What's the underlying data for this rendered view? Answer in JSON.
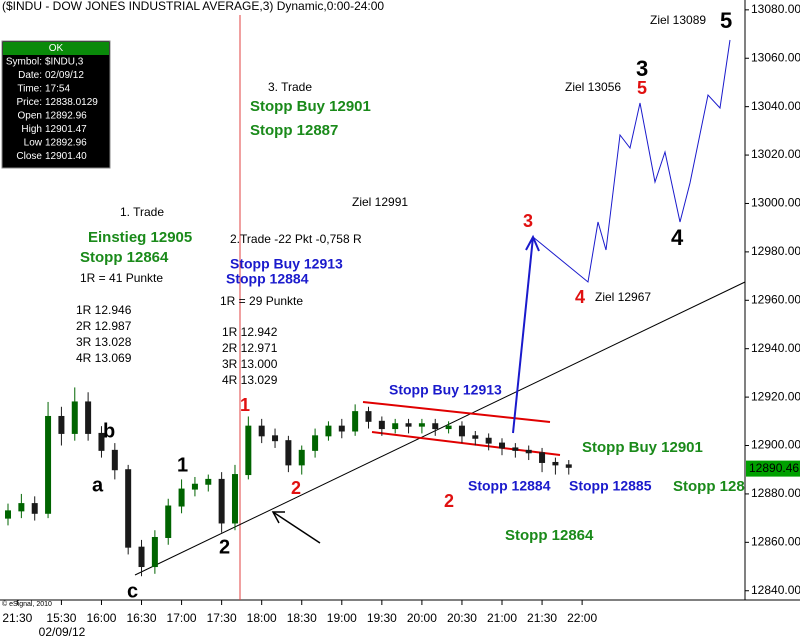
{
  "chart_data": {
    "type": "candlestick",
    "title": "($INDU - DOW JONES INDUSTRIAL AVERAGE,3) Dynamic,0:00-24:00",
    "x": [
      890,
      900,
      910,
      920,
      930,
      940,
      950,
      960,
      970,
      980,
      990,
      1000,
      1010,
      1020,
      1030,
      1040,
      1050,
      1060,
      1070,
      1080,
      1090,
      1100,
      1110,
      1120,
      1130,
      1140,
      1150,
      1160,
      1170,
      1180,
      1190,
      1200,
      1210,
      1220,
      1230,
      1240,
      1250,
      1260,
      1270,
      1280,
      1290,
      1300,
      1310
    ],
    "open": [
      12870,
      12873,
      12876,
      12872,
      12912,
      12905,
      12918,
      12905,
      12898,
      12890,
      12858,
      12850,
      12862,
      12875,
      12882,
      12884,
      12886,
      12868,
      12888,
      12908,
      12904,
      12902,
      12892,
      12898,
      12904,
      12908,
      12906,
      12914,
      12910,
      12907,
      12909,
      12908,
      12909,
      12907,
      12908,
      12904,
      12903,
      12901,
      12899,
      12898,
      12897,
      12893,
      12892
    ],
    "high": [
      12876,
      12880,
      12879,
      12918,
      12916,
      12924,
      12922,
      12908,
      12901,
      12892,
      12861,
      12865,
      12878,
      12886,
      12887,
      12888,
      12889,
      12892,
      12912,
      12911,
      12907,
      12904,
      12900,
      12907,
      12910,
      12911,
      12917,
      12916,
      12912,
      12911,
      12911,
      12911,
      12911,
      12910,
      12910,
      12906,
      12905,
      12903,
      12901,
      12900,
      12899,
      12895,
      12894
    ],
    "low": [
      12867,
      12870,
      12869,
      12870,
      12900,
      12902,
      12902,
      12895,
      12886,
      12855,
      12846,
      12847,
      12859,
      12872,
      12879,
      12881,
      12864,
      12865,
      12886,
      12901,
      12899,
      12889,
      12888,
      12895,
      12902,
      12903,
      12904,
      12907,
      12904,
      12905,
      12905,
      12905,
      12904,
      12905,
      12901,
      12900,
      12898,
      12896,
      12895,
      12894,
      12889,
      12888,
      12888
    ],
    "close": [
      12873,
      12876,
      12872,
      12912,
      12905,
      12918,
      12905,
      12898,
      12890,
      12858,
      12850,
      12862,
      12875,
      12882,
      12884,
      12886,
      12868,
      12888,
      12908,
      12904,
      12902,
      12892,
      12898,
      12904,
      12908,
      12906,
      12914,
      12910,
      12907,
      12909,
      12908,
      12909,
      12907,
      12908,
      12904,
      12903,
      12901,
      12899,
      12898,
      12897,
      12893,
      12892,
      12891
    ],
    "up_color": "#006400",
    "down_color": "#1a1a1a",
    "xlim": [
      884,
      1442
    ],
    "xticks": [
      {
        "value": 897,
        "label": "21:30"
      },
      {
        "value": 930,
        "label": "15:30"
      },
      {
        "value": 960,
        "label": "16:00"
      },
      {
        "value": 990,
        "label": "16:30"
      },
      {
        "value": 1020,
        "label": "17:00"
      },
      {
        "value": 1050,
        "label": "17:30"
      },
      {
        "value": 1080,
        "label": "18:00"
      },
      {
        "value": 1110,
        "label": "18:30"
      },
      {
        "value": 1140,
        "label": "19:00"
      },
      {
        "value": 1170,
        "label": "19:30"
      },
      {
        "value": 1200,
        "label": "20:00"
      },
      {
        "value": 1230,
        "label": "20:30"
      },
      {
        "value": 1260,
        "label": "21:00"
      },
      {
        "value": 1290,
        "label": "21:30"
      },
      {
        "value": 1320,
        "label": "22:00"
      }
    ],
    "date_label": "02/09/12",
    "ylim": [
      12837,
      13082
    ],
    "yticks": [
      {
        "value": 12840,
        "label": "12840.00"
      },
      {
        "value": 12860,
        "label": "12860.00"
      },
      {
        "value": 12880,
        "label": "12880.00"
      },
      {
        "value": 12900,
        "label": "12900.00"
      },
      {
        "value": 12920,
        "label": "12920.00"
      },
      {
        "value": 12940,
        "label": "12940.00"
      },
      {
        "value": 12960,
        "label": "12960.00"
      },
      {
        "value": 12980,
        "label": "12980.00"
      },
      {
        "value": 13000,
        "label": "13000.00"
      },
      {
        "value": 13020,
        "label": "13020.00"
      },
      {
        "value": 13040,
        "label": "13040.00"
      },
      {
        "value": 13060,
        "label": "13060.00"
      },
      {
        "value": 13080,
        "label": "13080.00"
      }
    ],
    "last_price": {
      "value": 12890.46,
      "label": "12890.46",
      "color": "#00a000"
    },
    "info_panel": {
      "status": "OK",
      "rows": [
        [
          "Symbol:",
          "$INDU,3"
        ],
        [
          "Date:",
          "02/09/12"
        ],
        [
          "Time:",
          "17:54"
        ],
        [
          "Price:",
          "12838.0129"
        ],
        [
          "Open",
          "12892.96"
        ],
        [
          "High",
          "12901.47"
        ],
        [
          "Low",
          "12892.96"
        ],
        [
          "Close",
          "12901.40"
        ]
      ]
    },
    "credit": "© eSignal, 2010",
    "annotations": [
      {
        "text": "3. Trade",
        "color": "#000000"
      },
      {
        "text": "Stopp Buy 12901",
        "color": "#1a8a1a"
      },
      {
        "text": "Stopp 12887",
        "color": "#1a8a1a"
      },
      {
        "text": "Ziel 12991",
        "color": "#000000"
      },
      {
        "text": "1. Trade",
        "color": "#000000"
      },
      {
        "text": "Einstieg 12905",
        "color": "#1a8a1a"
      },
      {
        "text": "Stopp 12864",
        "color": "#1a8a1a"
      },
      {
        "text": "1R =    41 Punkte",
        "color": "#000000"
      },
      {
        "text": "1R     12.946",
        "color": "#000000"
      },
      {
        "text": "2R     12.987",
        "color": "#000000"
      },
      {
        "text": "3R     13.028",
        "color": "#000000"
      },
      {
        "text": "4R     13.069",
        "color": "#000000"
      },
      {
        "text": "2.Trade -22 Pkt -0,758 R",
        "color": "#000000"
      },
      {
        "text": "Stopp Buy 12913",
        "color": "#1a1acc"
      },
      {
        "text": "Stopp 12884",
        "color": "#1a1acc"
      },
      {
        "text": "1R =    29 Punkte",
        "color": "#000000"
      },
      {
        "text": "1R     12.942",
        "color": "#000000"
      },
      {
        "text": "2R     12.971",
        "color": "#000000"
      },
      {
        "text": "3R     13.000",
        "color": "#000000"
      },
      {
        "text": "4R     13.029",
        "color": "#000000"
      },
      {
        "text": "Ziel 13089",
        "color": "#000000"
      },
      {
        "text": "5",
        "color": "#000000"
      },
      {
        "text": "3",
        "color": "#000000"
      },
      {
        "text": "5",
        "color": "#e01010"
      },
      {
        "text": "Ziel 13056",
        "color": "#000000"
      },
      {
        "text": "3",
        "color": "#e01010"
      },
      {
        "text": "4",
        "color": "#000000"
      },
      {
        "text": "4",
        "color": "#e01010"
      },
      {
        "text": "Ziel 12967",
        "color": "#000000"
      },
      {
        "text": "Stopp Buy 12913",
        "color": "#1a1acc"
      },
      {
        "text": "Stopp Buy 12901",
        "color": "#1a8a1a"
      },
      {
        "text": "Stopp 12884",
        "color": "#1a1acc"
      },
      {
        "text": "Stopp 12885",
        "color": "#1a1acc"
      },
      {
        "text": "Stopp 128",
        "color": "#1a8a1a"
      },
      {
        "text": "2",
        "color": "#e01010"
      },
      {
        "text": "Stopp 12864",
        "color": "#1a8a1a"
      },
      {
        "text": "b",
        "color": "#000000"
      },
      {
        "text": "a",
        "color": "#000000"
      },
      {
        "text": "1",
        "color": "#000000"
      },
      {
        "text": "2",
        "color": "#e01010"
      },
      {
        "text": "2",
        "color": "#000000"
      },
      {
        "text": "1",
        "color": "#e01010"
      },
      {
        "text": "c",
        "color": "#000000"
      }
    ]
  }
}
